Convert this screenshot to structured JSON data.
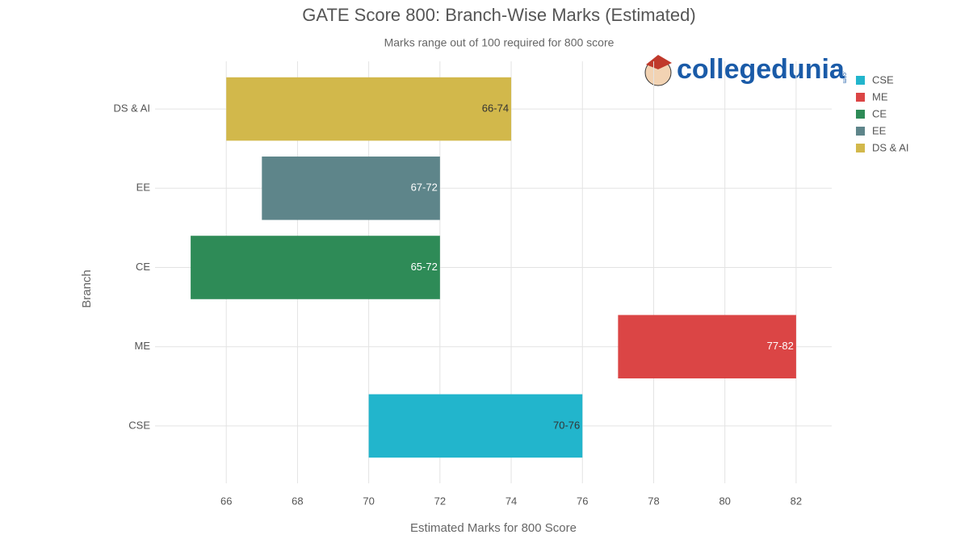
{
  "chart_data": {
    "type": "range_bar",
    "title": "GATE Score 800: Branch-Wise Marks (Estimated)",
    "subtitle": "Marks range out of 100 required for 800 score",
    "x_label": "Estimated Marks for 800 Score",
    "y_label": "Branch",
    "watermark": "collegedunia",
    "watermark_domain": ".com",
    "categories": [
      "CSE",
      "ME",
      "CE",
      "EE",
      "DS & AI"
    ],
    "low": [
      70,
      77,
      65,
      67,
      66
    ],
    "high": [
      76,
      82,
      72,
      72,
      74
    ],
    "value_labels": [
      "70-76",
      "77-82",
      "65-72",
      "67-72",
      "66-74"
    ],
    "colors": [
      "#22b5cc",
      "#db4545",
      "#2e8b57",
      "#5e858a",
      "#d2b84b"
    ],
    "value_label_colors": [
      "#333333",
      "#ffffff",
      "#ffffff",
      "#ffffff",
      "#333333"
    ],
    "xlim": [
      64,
      83
    ],
    "xticks": [
      66,
      68,
      70,
      72,
      74,
      76,
      78,
      80,
      82
    ],
    "grid": true,
    "legend": "top-right"
  }
}
